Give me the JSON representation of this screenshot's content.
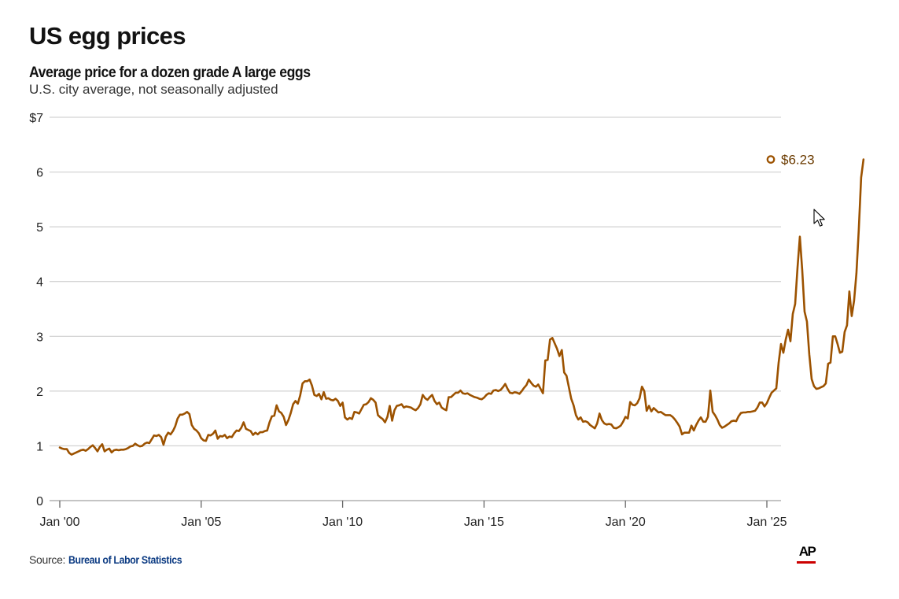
{
  "header": {
    "title": "US egg prices",
    "subtitle": "Average price for a dozen grade A large eggs",
    "description": "U.S. city average, not seasonally adjusted"
  },
  "footer": {
    "source_label": "Source: ",
    "source_name": "Bureau of Labor Statistics",
    "logo": "AP",
    "logo_accent_color": "#cc0000"
  },
  "colors": {
    "line": "#9c5200",
    "grid": "#c8c8c8",
    "axis": "#888888",
    "end_label": "#6b3b00"
  },
  "chart_data": {
    "type": "line",
    "title": "Average price for a dozen grade A large eggs",
    "subtitle": "U.S. city average, not seasonally adjusted",
    "xlabel": "",
    "ylabel": "",
    "ylim": [
      0,
      7
    ],
    "yticks": [
      0,
      1,
      2,
      3,
      4,
      5,
      6,
      7
    ],
    "ytick_labels": [
      "0",
      "1",
      "2",
      "3",
      "4",
      "5",
      "6",
      "$7"
    ],
    "xticks": [
      "Jan '00",
      "Jan '05",
      "Jan '10",
      "Jan '15",
      "Jan '20",
      "Jan '25"
    ],
    "xtick_years": [
      2000,
      2005,
      2010,
      2015,
      2020,
      2025
    ],
    "xlim": [
      "2000-01",
      "2025-03"
    ],
    "grid": true,
    "legend": "none",
    "annotation": {
      "label": "$6.23",
      "x": "2025-01",
      "y": 6.23
    },
    "start": "2000-01",
    "frequency": "monthly",
    "series": [
      {
        "name": "Average price, dozen grade A large eggs",
        "values": [
          0.97,
          0.95,
          0.94,
          0.94,
          0.87,
          0.84,
          0.86,
          0.88,
          0.9,
          0.92,
          0.93,
          0.91,
          0.94,
          0.98,
          1.01,
          0.96,
          0.9,
          0.98,
          1.03,
          0.9,
          0.93,
          0.95,
          0.88,
          0.92,
          0.93,
          0.92,
          0.93,
          0.93,
          0.94,
          0.96,
          0.99,
          1.0,
          1.04,
          1.01,
          0.99,
          1.0,
          1.04,
          1.06,
          1.05,
          1.12,
          1.19,
          1.18,
          1.2,
          1.16,
          1.02,
          1.17,
          1.24,
          1.21,
          1.27,
          1.36,
          1.5,
          1.57,
          1.57,
          1.59,
          1.62,
          1.58,
          1.38,
          1.31,
          1.28,
          1.23,
          1.14,
          1.1,
          1.09,
          1.2,
          1.19,
          1.22,
          1.28,
          1.13,
          1.18,
          1.17,
          1.2,
          1.14,
          1.17,
          1.16,
          1.23,
          1.28,
          1.27,
          1.33,
          1.43,
          1.31,
          1.29,
          1.27,
          1.2,
          1.24,
          1.21,
          1.25,
          1.25,
          1.27,
          1.28,
          1.43,
          1.54,
          1.55,
          1.74,
          1.63,
          1.6,
          1.53,
          1.38,
          1.47,
          1.6,
          1.76,
          1.82,
          1.77,
          1.92,
          2.14,
          2.18,
          2.18,
          2.21,
          2.1,
          1.93,
          1.91,
          1.95,
          1.85,
          1.98,
          1.86,
          1.87,
          1.84,
          1.83,
          1.86,
          1.82,
          1.73,
          1.79,
          1.52,
          1.48,
          1.51,
          1.49,
          1.62,
          1.61,
          1.59,
          1.67,
          1.75,
          1.76,
          1.8,
          1.87,
          1.84,
          1.79,
          1.56,
          1.52,
          1.49,
          1.43,
          1.53,
          1.73,
          1.46,
          1.65,
          1.73,
          1.74,
          1.76,
          1.7,
          1.72,
          1.71,
          1.7,
          1.67,
          1.65,
          1.69,
          1.76,
          1.93,
          1.87,
          1.84,
          1.89,
          1.93,
          1.82,
          1.76,
          1.79,
          1.7,
          1.67,
          1.65,
          1.89,
          1.89,
          1.93,
          1.97,
          1.97,
          2.01,
          1.96,
          1.95,
          1.96,
          1.93,
          1.91,
          1.89,
          1.88,
          1.86,
          1.85,
          1.88,
          1.93,
          1.96,
          1.95,
          2.01,
          2.02,
          2.0,
          2.02,
          2.07,
          2.13,
          2.04,
          1.97,
          1.96,
          1.98,
          1.97,
          1.95,
          2.0,
          2.06,
          2.11,
          2.21,
          2.15,
          2.1,
          2.08,
          2.12,
          2.04,
          1.96,
          2.56,
          2.57,
          2.94,
          2.97,
          2.87,
          2.77,
          2.64,
          2.75,
          2.34,
          2.28,
          2.07,
          1.86,
          1.74,
          1.56,
          1.48,
          1.52,
          1.44,
          1.45,
          1.43,
          1.38,
          1.35,
          1.32,
          1.41,
          1.59,
          1.47,
          1.41,
          1.39,
          1.4,
          1.39,
          1.33,
          1.32,
          1.34,
          1.37,
          1.44,
          1.53,
          1.5,
          1.8,
          1.75,
          1.74,
          1.78,
          1.87,
          2.08,
          2.0,
          1.64,
          1.73,
          1.63,
          1.69,
          1.65,
          1.61,
          1.62,
          1.59,
          1.56,
          1.56,
          1.56,
          1.53,
          1.48,
          1.42,
          1.35,
          1.21,
          1.24,
          1.24,
          1.24,
          1.37,
          1.28,
          1.38,
          1.46,
          1.52,
          1.44,
          1.44,
          1.53,
          2.01,
          1.62,
          1.56,
          1.48,
          1.38,
          1.33,
          1.35,
          1.38,
          1.41,
          1.45,
          1.46,
          1.45,
          1.54,
          1.6,
          1.61,
          1.61,
          1.62,
          1.62,
          1.63,
          1.64,
          1.7,
          1.79,
          1.79,
          1.72,
          1.78,
          1.88,
          1.97,
          2.01,
          2.05,
          2.52,
          2.86,
          2.7,
          2.94,
          3.12,
          2.91,
          3.41,
          3.59,
          4.25,
          4.82,
          4.21,
          3.45,
          3.27,
          2.67,
          2.22,
          2.09,
          2.04,
          2.05,
          2.07,
          2.09,
          2.14,
          2.5,
          2.52,
          3.0,
          3.0,
          2.86,
          2.7,
          2.72,
          3.08,
          3.2,
          3.82,
          3.37,
          3.65,
          4.15,
          4.95,
          5.9,
          6.23
        ]
      }
    ]
  }
}
